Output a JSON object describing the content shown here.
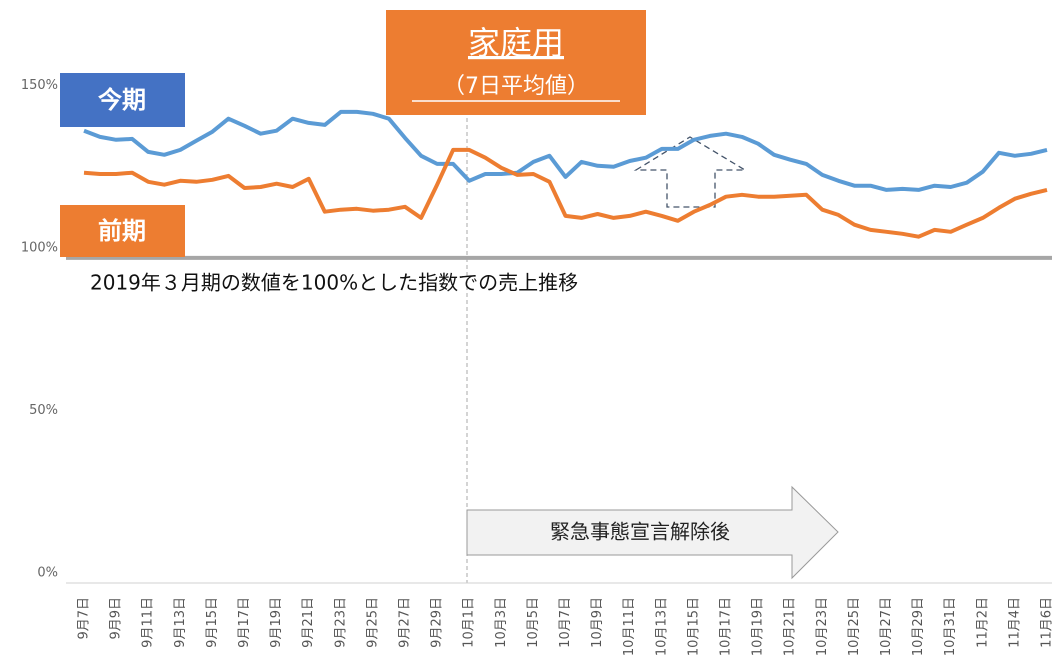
{
  "chart_data": {
    "type": "line",
    "title": "家庭用",
    "subtitle": "（7日平均値）",
    "note": "2019年３月期の数値を100%とした指数での売上推移",
    "annotation": "緊急事態宣言解除後",
    "categories": [
      "9月7日",
      null,
      "9月9日",
      null,
      "9月11日",
      null,
      "9月13日",
      null,
      "9月15日",
      null,
      "9月17日",
      null,
      "9月19日",
      null,
      "9月21日",
      null,
      "9月23日",
      null,
      "9月25日",
      null,
      "9月27日",
      null,
      "9月29日",
      null,
      "10月1日",
      null,
      "10月3日",
      null,
      "10月5日",
      null,
      "10月7日",
      null,
      "10月9日",
      null,
      "10月11日",
      null,
      "10月13日",
      null,
      "10月15日",
      null,
      "10月17日",
      null,
      "10月19日",
      null,
      "10月21日",
      null,
      "10月23日",
      null,
      "10月25日",
      null,
      "10月27日",
      null,
      "10月29日",
      null,
      "10月31日",
      null,
      "11月2日",
      null,
      "11月4日",
      null,
      "11月6日"
    ],
    "series": [
      {
        "name": "今期",
        "color": "#5b9bd5",
        "label_color": "#4472c4",
        "values": [
          139.1,
          137.2,
          136.3,
          136.6,
          132.6,
          131.7,
          133.2,
          136,
          138.8,
          142.8,
          140.6,
          138.2,
          139.1,
          142.8,
          141.5,
          140.9,
          144.9,
          144.9,
          144.3,
          142.8,
          136.9,
          131.4,
          128.9,
          128.9,
          123.7,
          125.8,
          125.8,
          126.2,
          129.5,
          131.4,
          124.9,
          129.5,
          128.3,
          128,
          129.8,
          130.8,
          133.5,
          133.5,
          136.3,
          137.5,
          138.2,
          137.2,
          135.1,
          131.7,
          130.2,
          128.9,
          125.5,
          123.7,
          122.2,
          122.2,
          120.9,
          121.2,
          120.9,
          122.2,
          121.8,
          123.1,
          126.5,
          132.3,
          131.4,
          132,
          133.2
        ]
      },
      {
        "name": "前期",
        "color": "#ed7d31",
        "label_color": "#ed7d31",
        "values": [
          126.2,
          125.8,
          125.8,
          126.2,
          123.4,
          122.5,
          123.7,
          123.4,
          124,
          125.2,
          121.5,
          121.8,
          122.8,
          121.8,
          124.3,
          114.2,
          114.8,
          115.1,
          114.5,
          114.8,
          115.7,
          112.3,
          122.5,
          133.2,
          133.2,
          130.8,
          127.7,
          125.5,
          125.8,
          123.4,
          112.9,
          112.3,
          113.5,
          112.3,
          112.9,
          114.2,
          112.9,
          111.4,
          114.2,
          116.3,
          118.8,
          119.4,
          118.8,
          118.8,
          119.1,
          119.4,
          114.8,
          113.2,
          110.2,
          108.6,
          108,
          107.4,
          106.5,
          108.6,
          108,
          110.2,
          112.3,
          115.4,
          118.2,
          119.7,
          120.9
        ]
      }
    ],
    "ylim": [
      0,
      175
    ],
    "yticks": [
      {
        "value": 0,
        "label": "0%"
      },
      {
        "value": 50,
        "label": "50%"
      },
      {
        "value": 100,
        "label": "100%"
      },
      {
        "value": 150,
        "label": "150%"
      }
    ],
    "reference_line": 100
  }
}
